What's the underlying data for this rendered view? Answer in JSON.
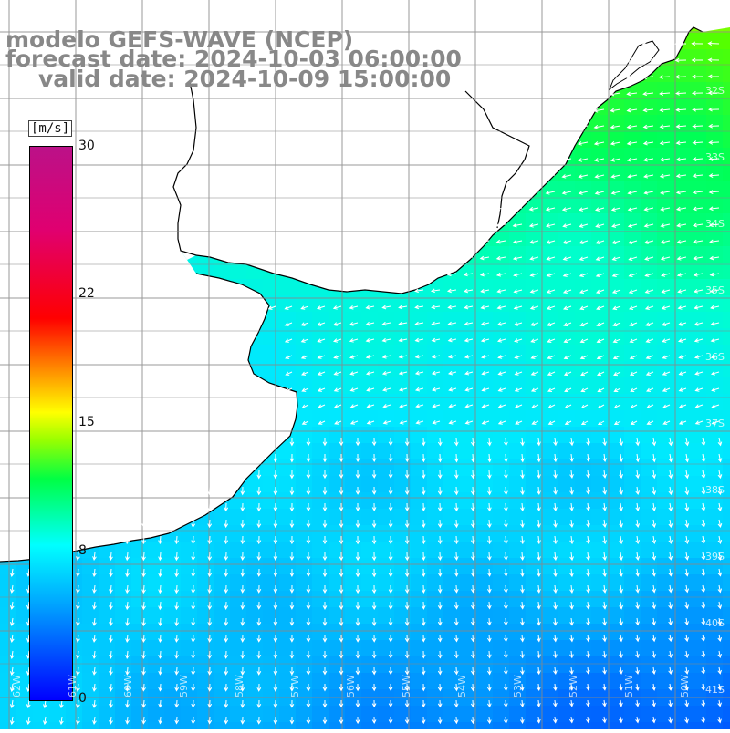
{
  "title": {
    "line1": "modelo GEFS-WAVE (NCEP)",
    "line2": "forecast date: 2024-10-03 06:00:00",
    "line3": "valid date: 2024-10-09 15:00:00"
  },
  "colorbar": {
    "unit": "[m/s]",
    "min": 0,
    "max": 30,
    "ticks": [
      "30",
      "22",
      "15",
      "8",
      "0"
    ],
    "tick_values": [
      30,
      22,
      15,
      8,
      0
    ],
    "colors": [
      "#0000ff",
      "#00aaff",
      "#00ffff",
      "#00ff44",
      "#99ff00",
      "#ffff00",
      "#ff8800",
      "#ff0000",
      "#e00070",
      "#bb1188"
    ]
  },
  "map": {
    "land_color": "#ffffff",
    "coastline_color": "#000000",
    "grid_color": "#888888",
    "arrow_color": "#ffffff",
    "lat_labels": [
      "32S",
      "33S",
      "34S",
      "35S",
      "36S",
      "37S",
      "38S",
      "39S",
      "40S",
      "41S"
    ],
    "lon_labels": [
      "62W",
      "61W",
      "60W",
      "59W",
      "58W",
      "57W",
      "56W",
      "55W",
      "54W",
      "53W",
      "52W",
      "51W",
      "50W"
    ]
  }
}
